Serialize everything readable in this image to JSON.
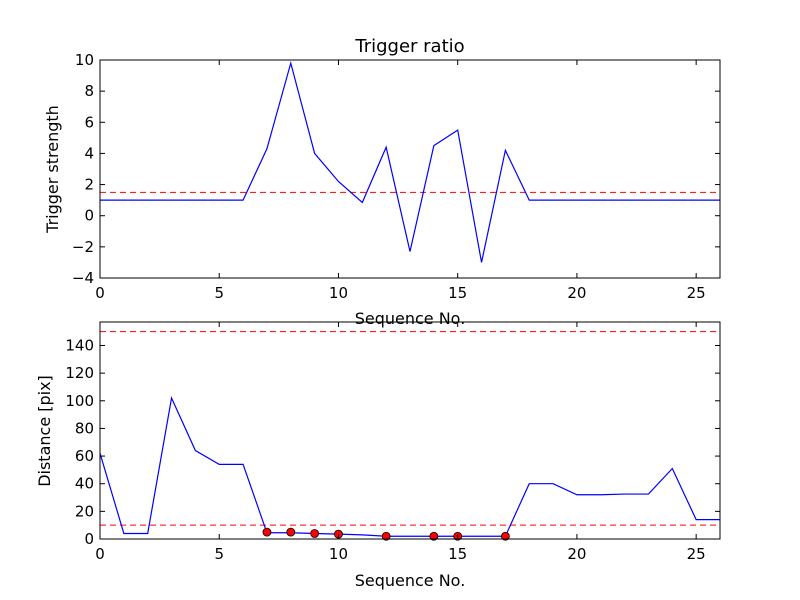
{
  "chart_data": [
    {
      "type": "line",
      "title": "Trigger ratio",
      "xlabel": "Sequence No.",
      "ylabel": "Trigger strength",
      "xlim": [
        0,
        26
      ],
      "ylim": [
        -4,
        10
      ],
      "xticks": [
        0,
        5,
        10,
        15,
        20,
        25
      ],
      "yticks": [
        -4,
        -2,
        0,
        2,
        4,
        6,
        8,
        10
      ],
      "series": [
        {
          "color": "#0000ff",
          "style": "solid",
          "x": [
            0,
            1,
            2,
            3,
            4,
            5,
            6,
            7,
            8,
            9,
            10,
            11,
            12,
            13,
            14,
            15,
            16,
            17,
            18,
            19,
            20,
            21,
            22,
            23,
            24,
            25,
            26
          ],
          "y": [
            1,
            1,
            1,
            1,
            1,
            1,
            1,
            4.3,
            9.8,
            4.0,
            2.2,
            0.85,
            4.4,
            -2.3,
            4.5,
            5.5,
            -3.0,
            4.2,
            1,
            1,
            1,
            1,
            1,
            1,
            1,
            1,
            1
          ]
        }
      ],
      "hlines": [
        {
          "y": 1.5,
          "color": "#ff0000",
          "style": "dashed"
        }
      ]
    },
    {
      "type": "line",
      "title": "",
      "xlabel": "Sequence No.",
      "ylabel": "Distance [pix]",
      "xlim": [
        0,
        26
      ],
      "ylim": [
        0,
        157
      ],
      "xticks": [
        0,
        5,
        10,
        15,
        20,
        25
      ],
      "yticks": [
        0,
        20,
        40,
        60,
        80,
        100,
        120,
        140
      ],
      "series": [
        {
          "color": "#0000ff",
          "style": "solid",
          "x": [
            0,
            1,
            2,
            3,
            4,
            5,
            6,
            7,
            8,
            9,
            10,
            11,
            12,
            13,
            14,
            15,
            16,
            17,
            18,
            19,
            20,
            21,
            22,
            23,
            24,
            25,
            26
          ],
          "y": [
            62,
            4,
            4,
            102,
            64,
            54,
            54,
            4.5,
            4.5,
            4,
            3.5,
            3,
            2,
            2,
            2,
            2,
            2,
            2,
            40,
            40,
            32,
            32,
            32.5,
            32.5,
            51,
            14,
            14
          ]
        }
      ],
      "points": {
        "color": "#ff0000",
        "x": [
          7,
          8,
          9,
          10,
          12,
          14,
          15,
          17
        ],
        "y": [
          5,
          5,
          4,
          3.5,
          2,
          2,
          2,
          2
        ]
      },
      "hlines": [
        {
          "y": 150,
          "color": "#ff0000",
          "style": "dashed"
        },
        {
          "y": 10,
          "color": "#ff0000",
          "style": "dashed"
        }
      ]
    }
  ]
}
